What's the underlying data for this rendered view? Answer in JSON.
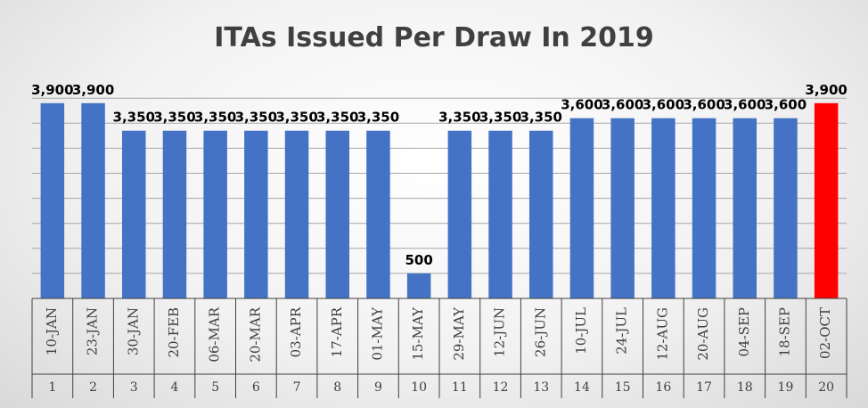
{
  "chart_data": {
    "type": "bar",
    "title": "ITAs Issued Per Draw In 2019",
    "xlabel": "",
    "ylabel": "",
    "categories": [
      "10-JAN",
      "23-JAN",
      "30-JAN",
      "20-FEB",
      "06-MAR",
      "20-MAR",
      "03-APR",
      "17-APR",
      "01-MAY",
      "15-MAY",
      "29-MAY",
      "12-JUN",
      "26-JUN",
      "10-JUL",
      "24-JUL",
      "12-AUG",
      "20-AUG",
      "04-SEP",
      "18-SEP",
      "02-OCT"
    ],
    "draw_numbers": [
      "1",
      "2",
      "3",
      "4",
      "5",
      "6",
      "7",
      "8",
      "9",
      "10",
      "11",
      "12",
      "13",
      "14",
      "15",
      "16",
      "17",
      "18",
      "19",
      "20"
    ],
    "values": [
      3900,
      3900,
      3350,
      3350,
      3350,
      3350,
      3350,
      3350,
      3350,
      500,
      3350,
      3350,
      3350,
      3600,
      3600,
      3600,
      3600,
      3600,
      3600,
      3900
    ],
    "data_labels": [
      "3,900",
      "3,900",
      "3,350",
      "3,350",
      "3,350",
      "3,350",
      "3,350",
      "3,350",
      "3,350",
      "500",
      "3,350",
      "3,350",
      "3,350",
      "3,600",
      "3,600",
      "3,600",
      "3,600",
      "3,600",
      "3,600",
      "3,900"
    ],
    "ylim": [
      0,
      5000
    ],
    "grid": true,
    "legend": "none",
    "colors": {
      "bar": "#4472C4",
      "highlight_bar": "#FF0000",
      "gridline": "#A6A6A6",
      "axis": "#404040"
    },
    "highlight_index": 19
  }
}
